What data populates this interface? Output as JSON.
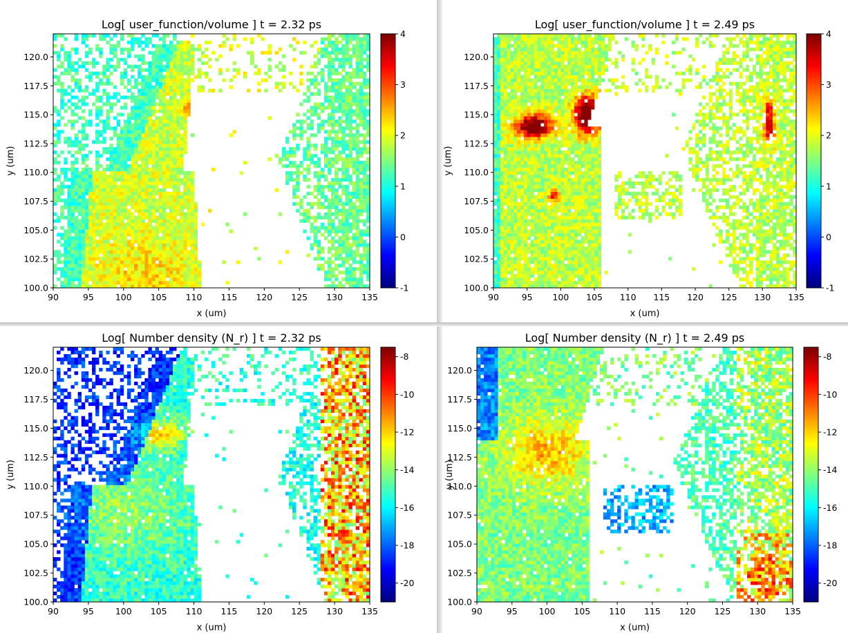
{
  "colors": {
    "jet": [
      "#00007f",
      "#0000ff",
      "#007fff",
      "#00ffff",
      "#7fff7f",
      "#ffff00",
      "#ff7f00",
      "#ff0000",
      "#7f0000"
    ],
    "background": "#ffffff"
  },
  "chart_data": [
    {
      "type": "heatmap",
      "title": "Log[ user_function/volume ]  t = 2.32 ps",
      "xlabel": "x (um)",
      "ylabel": "y (um)",
      "xlim": [
        90,
        135
      ],
      "ylim": [
        100,
        122
      ],
      "xticks": [
        "90",
        "95",
        "100",
        "105",
        "110",
        "115",
        "120",
        "125",
        "130",
        "135"
      ],
      "yticks": [
        "100.0",
        "102.5",
        "105.0",
        "107.5",
        "110.0",
        "112.5",
        "115.0",
        "117.5",
        "120.0"
      ],
      "colorbar": {
        "range": [
          -1,
          4
        ],
        "ticks": [
          "-1",
          "0",
          "1",
          "2",
          "3",
          "4"
        ]
      },
      "colormap": "jet",
      "grid": false
    },
    {
      "type": "heatmap",
      "title": "Log[ user_function/volume ]  t = 2.49 ps",
      "xlabel": "x (um)",
      "ylabel": "y (um)",
      "xlim": [
        90,
        135
      ],
      "ylim": [
        100,
        122
      ],
      "xticks": [
        "90",
        "95",
        "100",
        "105",
        "110",
        "115",
        "120",
        "125",
        "130",
        "135"
      ],
      "yticks": [
        "100.0",
        "102.5",
        "105.0",
        "107.5",
        "110.0",
        "112.5",
        "115.0",
        "117.5",
        "120.0"
      ],
      "colorbar": {
        "range": [
          -1,
          4
        ],
        "ticks": [
          "-1",
          "0",
          "1",
          "2",
          "3",
          "4"
        ]
      },
      "colormap": "jet",
      "grid": false
    },
    {
      "type": "heatmap",
      "title": "Log[ Number density (N_r) ]  t = 2.32 ps",
      "xlabel": "x (um)",
      "ylabel": "y (um)",
      "xlim": [
        90,
        135
      ],
      "ylim": [
        100,
        122
      ],
      "xticks": [
        "90",
        "95",
        "100",
        "105",
        "110",
        "115",
        "120",
        "125",
        "130",
        "135"
      ],
      "yticks": [
        "100.0",
        "102.5",
        "105.0",
        "107.5",
        "110.0",
        "112.5",
        "115.0",
        "117.5",
        "120.0"
      ],
      "colorbar": {
        "range": [
          -21,
          -7.5
        ],
        "ticks": [
          "-20",
          "-18",
          "-16",
          "-14",
          "-12",
          "-10",
          "-8"
        ]
      },
      "colormap": "jet",
      "grid": false
    },
    {
      "type": "heatmap",
      "title": "Log[ Number density (N_r) ]  t = 2.49 ps",
      "xlabel": "x (um)",
      "ylabel": "y (um)",
      "xlim": [
        90,
        135
      ],
      "ylim": [
        100,
        122
      ],
      "xticks": [
        "90",
        "95",
        "100",
        "105",
        "110",
        "115",
        "120",
        "125",
        "130",
        "135"
      ],
      "yticks": [
        "100.0",
        "102.5",
        "105.0",
        "107.5",
        "110.0",
        "112.5",
        "115.0",
        "117.5",
        "120.0"
      ],
      "colorbar": {
        "range": [
          -21,
          -7.5
        ],
        "ticks": [
          "-20",
          "-18",
          "-16",
          "-14",
          "-12",
          "-10",
          "-8"
        ]
      },
      "colormap": "jet",
      "grid": false
    }
  ]
}
